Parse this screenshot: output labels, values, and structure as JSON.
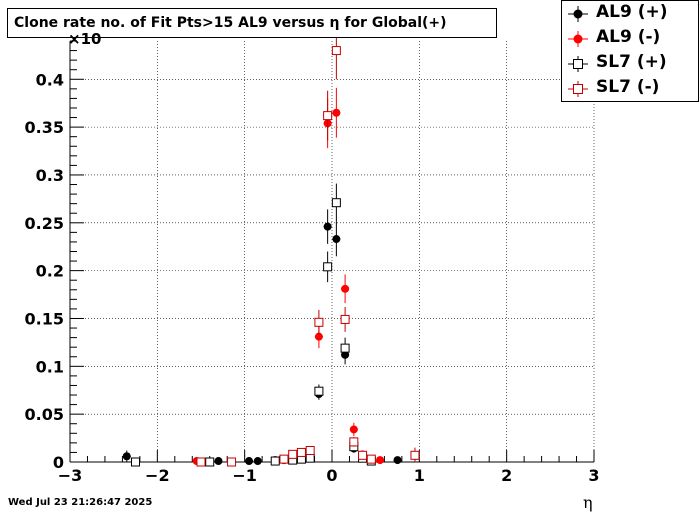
{
  "title": "Clone rate no. of Fit Pts>15 AL9 versus η for Global(+)",
  "datestamp": "Wed Jul 23 21:26:47 2025",
  "chart_data": {
    "type": "scatter",
    "title": "Clone rate no. of Fit Pts>15 AL9 versus η for Global(+)",
    "xlabel": "η",
    "ylabel": "",
    "y_multiplier_label": "×10",
    "xlim": [
      -3,
      3
    ],
    "ylim": [
      0,
      0.44
    ],
    "x_ticks": [
      "−3",
      "−2",
      "−1",
      "0",
      "1",
      "2",
      "3"
    ],
    "x_tick_values": [
      -3,
      -2,
      -1,
      0,
      1,
      2,
      3
    ],
    "y_ticks": [
      "0",
      "0.05",
      "0.1",
      "0.15",
      "0.2",
      "0.25",
      "0.3",
      "0.35",
      "0.4"
    ],
    "y_tick_values": [
      0,
      0.05,
      0.1,
      0.15,
      0.2,
      0.25,
      0.3,
      0.35,
      0.4
    ],
    "grid": true,
    "legend_position": "top-right",
    "series": [
      {
        "name": "AL9 (+)",
        "color": "#000000",
        "marker": "filled-circle",
        "points": [
          [
            -2.35,
            0.006,
            0.006
          ],
          [
            -1.3,
            0.001,
            0.002
          ],
          [
            -0.95,
            0.001,
            0.002
          ],
          [
            -0.85,
            0.001,
            0.002
          ],
          [
            -0.65,
            0.002,
            0.002
          ],
          [
            -0.55,
            0.002,
            0.002
          ],
          [
            -0.45,
            0.003,
            0.002
          ],
          [
            -0.4,
            0.003,
            0.002
          ],
          [
            -0.35,
            0.004,
            0.003
          ],
          [
            -0.25,
            0.005,
            0.003
          ],
          [
            -0.15,
            0.071,
            0.006
          ],
          [
            -0.05,
            0.246,
            0.018
          ],
          [
            0.05,
            0.233,
            0.018
          ],
          [
            0.15,
            0.112,
            0.01
          ],
          [
            0.25,
            0.014,
            0.004
          ],
          [
            0.35,
            0.005,
            0.003
          ],
          [
            0.45,
            0.002,
            0.002
          ],
          [
            0.75,
            0.002,
            0.002
          ]
        ]
      },
      {
        "name": "AL9 (-)",
        "color": "#ff0000",
        "marker": "filled-circle",
        "points": [
          [
            -1.55,
            0.001,
            0.002
          ],
          [
            -0.65,
            0.002,
            0.002
          ],
          [
            -0.55,
            0.002,
            0.002
          ],
          [
            -0.45,
            0.003,
            0.002
          ],
          [
            -0.35,
            0.004,
            0.003
          ],
          [
            -0.25,
            0.005,
            0.003
          ],
          [
            -0.15,
            0.131,
            0.012
          ],
          [
            -0.05,
            0.354,
            0.026
          ],
          [
            0.05,
            0.365,
            0.026
          ],
          [
            0.15,
            0.181,
            0.015
          ],
          [
            0.25,
            0.034,
            0.007
          ],
          [
            0.35,
            0.008,
            0.003
          ],
          [
            0.45,
            0.003,
            0.002
          ],
          [
            0.55,
            0.002,
            0.002
          ]
        ]
      },
      {
        "name": "SL7 (+)",
        "color": "#000000",
        "marker": "open-square",
        "points": [
          [
            -2.25,
            0.0,
            0.002
          ],
          [
            -1.5,
            0.0,
            0.002
          ],
          [
            -1.4,
            0.0,
            0.002
          ],
          [
            -0.65,
            0.001,
            0.002
          ],
          [
            -0.45,
            0.002,
            0.002
          ],
          [
            -0.35,
            0.003,
            0.002
          ],
          [
            -0.25,
            0.004,
            0.003
          ],
          [
            -0.15,
            0.074,
            0.007
          ],
          [
            -0.05,
            0.204,
            0.016
          ],
          [
            0.05,
            0.271,
            0.02
          ],
          [
            0.15,
            0.119,
            0.011
          ],
          [
            0.25,
            0.016,
            0.004
          ],
          [
            0.35,
            0.004,
            0.003
          ],
          [
            0.45,
            0.001,
            0.002
          ]
        ]
      },
      {
        "name": "SL7 (-)",
        "color": "#c00000",
        "marker": "open-square",
        "points": [
          [
            -1.5,
            0.0,
            0.002
          ],
          [
            -1.15,
            0.0,
            0.002
          ],
          [
            -0.55,
            0.003,
            0.002
          ],
          [
            -0.45,
            0.008,
            0.003
          ],
          [
            -0.35,
            0.01,
            0.003
          ],
          [
            -0.25,
            0.012,
            0.004
          ],
          [
            -0.15,
            0.146,
            0.013
          ],
          [
            -0.05,
            0.362,
            0.026
          ],
          [
            0.05,
            0.43,
            0.03
          ],
          [
            0.15,
            0.149,
            0.013
          ],
          [
            0.25,
            0.021,
            0.005
          ],
          [
            0.35,
            0.007,
            0.003
          ],
          [
            0.45,
            0.003,
            0.002
          ],
          [
            0.95,
            0.007,
            0.008
          ]
        ]
      }
    ]
  }
}
